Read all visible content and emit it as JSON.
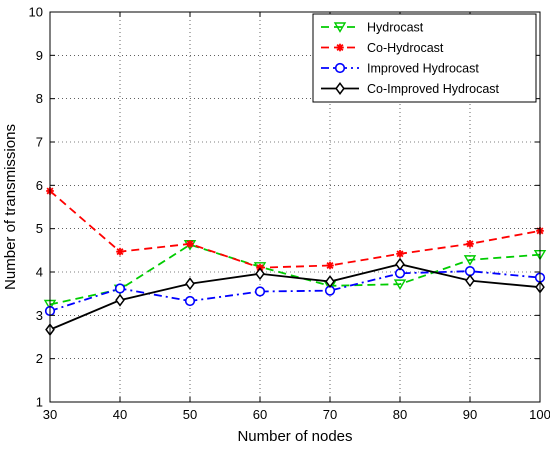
{
  "chart_data": {
    "type": "line",
    "title": "",
    "xlabel": "Number of nodes",
    "ylabel": "Number of transmissions",
    "x": [
      30,
      40,
      50,
      60,
      70,
      80,
      90,
      100
    ],
    "xlim": [
      30,
      100
    ],
    "ylim": [
      1,
      10
    ],
    "xticks": [
      "30",
      "40",
      "50",
      "60",
      "70",
      "80",
      "90",
      "100"
    ],
    "yticks": [
      "1",
      "2",
      "3",
      "4",
      "5",
      "6",
      "7",
      "8",
      "9",
      "10"
    ],
    "grid": true,
    "legend_position": "top-right",
    "series": [
      {
        "name": "Hydrocast",
        "values": [
          3.25,
          3.6,
          4.63,
          4.12,
          3.68,
          3.72,
          4.28,
          4.4
        ],
        "color": "#00cc00",
        "dash": "dashed",
        "marker": "triangle-down"
      },
      {
        "name": "Co-Hydrocast",
        "values": [
          5.87,
          4.47,
          4.65,
          4.1,
          4.15,
          4.42,
          4.65,
          4.95
        ],
        "color": "#ff0000",
        "dash": "dashed",
        "marker": "asterisk"
      },
      {
        "name": "Improved Hydrocast",
        "values": [
          3.1,
          3.62,
          3.33,
          3.55,
          3.57,
          3.97,
          4.02,
          3.87
        ],
        "color": "#0000ff",
        "dash": "dashdot",
        "marker": "circle"
      },
      {
        "name": "Co-Improved Hydrocast",
        "values": [
          2.67,
          3.35,
          3.73,
          3.96,
          3.78,
          4.18,
          3.8,
          3.65
        ],
        "color": "#000000",
        "dash": "solid",
        "marker": "diamond"
      }
    ]
  }
}
